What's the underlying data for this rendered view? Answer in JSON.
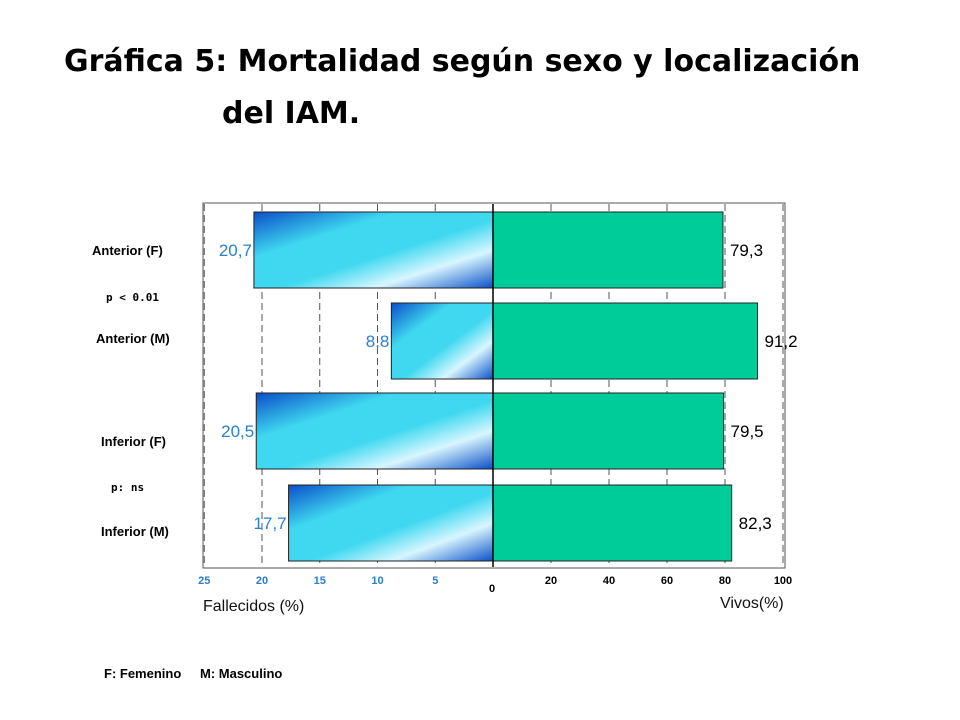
{
  "title_line1": "Gráfica 5: Mortalidad según sexo y localización",
  "title_line2": "del IAM.",
  "colors": {
    "dead_dark": "#0a4fc8",
    "dead_light": "#3fd8f0",
    "alive": "#00cc99",
    "dead_label": "#2a7fd0",
    "alive_label": "#000000",
    "left_tick": "#2a7fd0"
  },
  "chart_data": {
    "type": "bar",
    "orientation": "horizontal",
    "categories": [
      "Anterior (F)",
      "Anterior (M)",
      "Inferior (F)",
      "Inferior (M)"
    ],
    "series": [
      {
        "name": "Fallecidos (%)",
        "values": [
          20.7,
          8.8,
          20.5,
          17.7
        ],
        "labels": [
          "20,7",
          "8,8",
          "20,5",
          "17,7"
        ]
      },
      {
        "name": "Vivos(%)",
        "values": [
          79.3,
          91.2,
          79.5,
          82.3
        ],
        "labels": [
          "79,3",
          "91,2",
          "79,5",
          "82,3"
        ]
      }
    ],
    "left_axis": {
      "label": "Fallecidos (%)",
      "range": [
        0,
        25
      ],
      "ticks": [
        "25",
        "20",
        "15",
        "10",
        "5"
      ]
    },
    "right_axis": {
      "label": "Vivos(%)",
      "range": [
        0,
        100
      ],
      "ticks": [
        "20",
        "40",
        "60",
        "80",
        "100"
      ]
    },
    "zero_label": "0",
    "grid": true
  },
  "annotations": {
    "p_anterior": "p < 0.01",
    "p_inferior": "p: ns"
  },
  "legend": {
    "femenino": "F: Femenino",
    "masculino": "M: Masculino"
  }
}
